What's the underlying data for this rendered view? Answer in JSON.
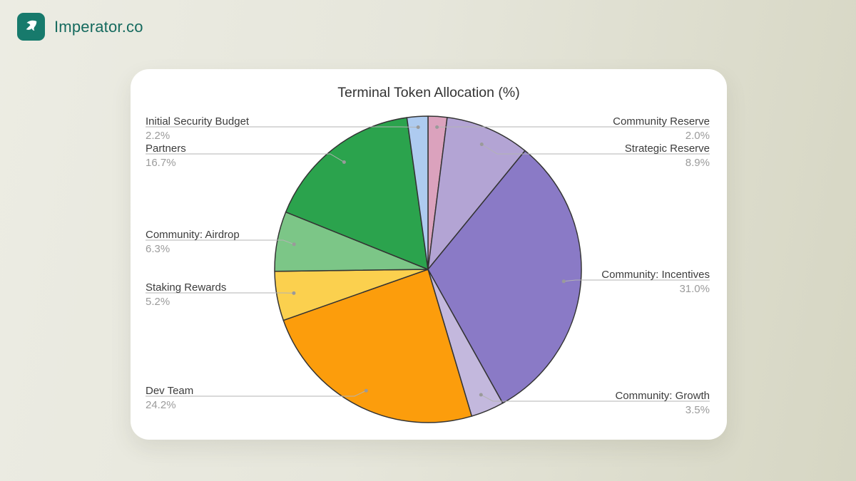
{
  "header": {
    "brand": "Imperator.co",
    "brand_color": "#156A5E",
    "logo_bg_color": "#177A6C"
  },
  "chart_data": {
    "type": "pie",
    "title": "Terminal Token Allocation (%)",
    "direction": "clockwise",
    "start_angle": "12-o-clock",
    "stroke": "#333333",
    "connector_color": "#b3b3b3",
    "slices": [
      {
        "label": "Community Reserve",
        "value": 2.0,
        "pct_label": "2.0%",
        "color": "#DBA2BD"
      },
      {
        "label": "Strategic Reserve",
        "value": 8.9,
        "pct_label": "8.9%",
        "color": "#B3A4D4"
      },
      {
        "label": "Community: Incentives",
        "value": 31.0,
        "pct_label": "31.0%",
        "color": "#8A7AC6"
      },
      {
        "label": "Community: Growth",
        "value": 3.5,
        "pct_label": "3.5%",
        "color": "#C3B8DD"
      },
      {
        "label": "Dev Team",
        "value": 24.2,
        "pct_label": "24.2%",
        "color": "#FC9D0C"
      },
      {
        "label": "Staking Rewards",
        "value": 5.2,
        "pct_label": "5.2%",
        "color": "#FBD04E"
      },
      {
        "label": "Community: Airdrop",
        "value": 6.3,
        "pct_label": "6.3%",
        "color": "#7CC687"
      },
      {
        "label": "Partners",
        "value": 16.7,
        "pct_label": "16.7%",
        "color": "#2BA34D"
      },
      {
        "label": "Initial Security Budget",
        "value": 2.2,
        "pct_label": "2.2%",
        "color": "#AECBF0"
      }
    ]
  }
}
